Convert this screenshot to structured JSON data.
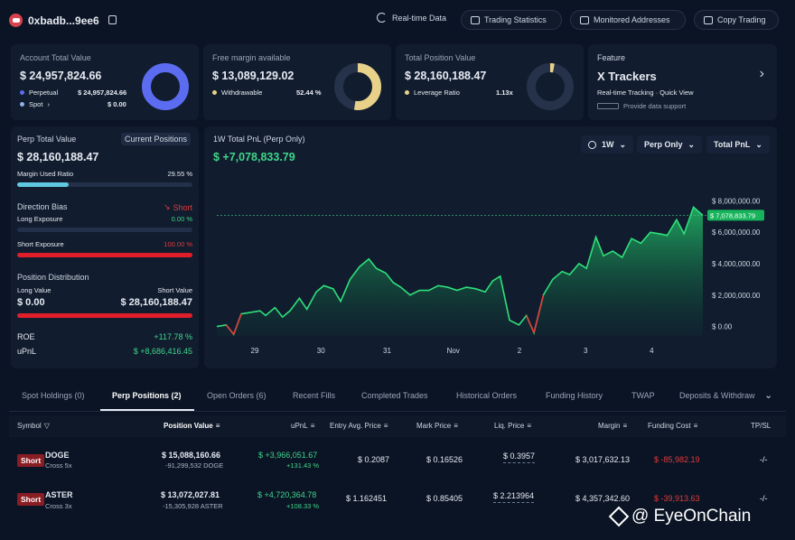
{
  "header": {
    "address": "0xbadb...9ee6",
    "buttons": [
      "Real-time Data",
      "Trading Statistics",
      "Monitored Addresses",
      "Copy Trading"
    ]
  },
  "cards": {
    "account": {
      "title": "Account Total Value",
      "value": "$ 24,957,824.66",
      "perpetual_label": "Perpetual",
      "perpetual_value": "$ 24,957,824.66",
      "spot_label": "Spot",
      "spot_value": "$ 0.00",
      "ring_fraction": 1.0
    },
    "margin": {
      "title": "Free margin available",
      "value": "$ 13,089,129.02",
      "withdrawable_label": "Withdrawable",
      "withdrawable_value": "52.44 %",
      "ring_fraction": 0.5244
    },
    "position": {
      "title": "Total Position Value",
      "value": "$ 28,160,188.47",
      "leverage_label": "Leverage Ratio",
      "leverage_value": "1.13x",
      "ring_fraction": 0.03
    },
    "feature": {
      "title": "Feature",
      "name": "X Trackers",
      "desc": "Real-time Tracking · Quick View",
      "support": "Provide data support"
    }
  },
  "perp_panel": {
    "title": "Perp Total Value",
    "tag": "Current Positions",
    "value": "$ 28,160,188.47",
    "margin_used_label": "Margin Used Ratio",
    "margin_used_value": "29.55 %",
    "margin_used_fraction": 0.2955,
    "direction_label": "Direction Bias",
    "direction_value": "Short",
    "long_exposure_label": "Long Exposure",
    "long_exposure_value": "0.00 %",
    "short_exposure_label": "Short Exposure",
    "short_exposure_value": "100.00 %",
    "distribution_label": "Position Distribution",
    "long_value_label": "Long Value",
    "short_value_label": "Short Value",
    "long_value": "$ 0.00",
    "short_value": "$ 28,160,188.47",
    "roe_label": "ROE",
    "roe_value": "+117.78 %",
    "upnl_label": "uPnL",
    "upnl_value": "$ +8,686,416.45"
  },
  "pnl_chart_panel": {
    "title": "1W Total PnL (Perp Only)",
    "value": "$ +7,078,833.79",
    "period": "1W",
    "filter": "Perp Only",
    "metric": "Total PnL"
  },
  "chart_data": {
    "type": "area",
    "title": "1W Total PnL (Perp Only)",
    "x_ticks": [
      "29",
      "30",
      "31",
      "Nov",
      "2",
      "3",
      "4"
    ],
    "y_ticks": [
      "$ 8,000,000.00",
      "$ 6,000,000.00",
      "$ 4,000,000.00",
      "$ 2,000,000.00",
      "$ 0.00"
    ],
    "ylim": [
      -600000,
      9000000
    ],
    "current_label": "$ 7,078,833.79",
    "current_value": 7078833.79,
    "points": [
      [
        0.0,
        0
      ],
      [
        0.5,
        100000
      ],
      [
        0.9,
        -500000
      ],
      [
        1.3,
        800000
      ],
      [
        1.8,
        900000
      ],
      [
        2.3,
        1000000
      ],
      [
        2.6,
        700000
      ],
      [
        3.1,
        1200000
      ],
      [
        3.5,
        600000
      ],
      [
        3.9,
        1000000
      ],
      [
        4.4,
        1800000
      ],
      [
        4.8,
        1100000
      ],
      [
        5.3,
        2200000
      ],
      [
        5.7,
        2600000
      ],
      [
        6.2,
        2400000
      ],
      [
        6.6,
        1600000
      ],
      [
        7.1,
        3000000
      ],
      [
        7.6,
        3800000
      ],
      [
        8.1,
        4300000
      ],
      [
        8.5,
        3700000
      ],
      [
        9.0,
        3400000
      ],
      [
        9.4,
        2800000
      ],
      [
        9.8,
        2500000
      ],
      [
        10.3,
        2000000
      ],
      [
        10.8,
        2300000
      ],
      [
        11.3,
        2300000
      ],
      [
        11.8,
        2600000
      ],
      [
        12.3,
        2500000
      ],
      [
        12.8,
        2300000
      ],
      [
        13.3,
        2500000
      ],
      [
        13.8,
        2400000
      ],
      [
        14.3,
        2200000
      ],
      [
        14.7,
        2900000
      ],
      [
        15.1,
        3200000
      ],
      [
        15.6,
        400000
      ],
      [
        16.1,
        100000
      ],
      [
        16.5,
        700000
      ],
      [
        16.9,
        -400000
      ],
      [
        17.4,
        2000000
      ],
      [
        17.9,
        3000000
      ],
      [
        18.4,
        3500000
      ],
      [
        18.8,
        3300000
      ],
      [
        19.3,
        4000000
      ],
      [
        19.7,
        3700000
      ],
      [
        20.2,
        5700000
      ],
      [
        20.6,
        4500000
      ],
      [
        21.1,
        4800000
      ],
      [
        21.6,
        4400000
      ],
      [
        22.1,
        5600000
      ],
      [
        22.6,
        5300000
      ],
      [
        23.1,
        6000000
      ],
      [
        23.6,
        5900000
      ],
      [
        24.0,
        5800000
      ],
      [
        24.5,
        6800000
      ],
      [
        24.9,
        5900000
      ],
      [
        25.4,
        7600000
      ],
      [
        25.9,
        7078833.79
      ]
    ]
  },
  "tabs": [
    "Spot Holdings (0)",
    "Perp Positions (2)",
    "Open Orders (6)",
    "Recent Fills",
    "Completed Trades",
    "Historical Orders",
    "Funding History",
    "TWAP",
    "Deposits & Withdraw"
  ],
  "table": {
    "headers": [
      "Symbol",
      "Position Value",
      "uPnL",
      "Entry Avg. Price",
      "Mark Price",
      "Liq. Price",
      "Margin",
      "Funding Cost",
      "TP/SL"
    ],
    "rows": [
      {
        "side": "Short",
        "symbol": "DOGE",
        "leverage": "Cross 5x",
        "value": "$ 15,088,160.66",
        "size": "-91,299,532 DOGE",
        "upnl": "$ +3,966,051.67",
        "upnl_pct": "+131.43 %",
        "entry": "$ 0.2087",
        "mark": "$ 0.16526",
        "liq": "$ 0.3957",
        "margin": "$ 3,017,632.13",
        "funding": "$ -85,982.19",
        "tpsl": "-/-"
      },
      {
        "side": "Short",
        "symbol": "ASTER",
        "leverage": "Cross 3x",
        "value": "$ 13,072,027.81",
        "size": "-15,305,928 ASTER",
        "upnl": "$ +4,720,364.78",
        "upnl_pct": "+108.33 %",
        "entry": "$ 1.162451",
        "mark": "$ 0.85405",
        "liq": "$ 2.213964",
        "margin": "$ 4,357,342.60",
        "funding": "$ -39,913.63",
        "tpsl": "-/-"
      }
    ]
  },
  "watermark": "@ EyeOnChain",
  "colors": {
    "background": "#0b1424",
    "card": "#111c2e",
    "accent_blue": "#5b6cf0",
    "accent_yellow": "#e8d28a",
    "green": "#3fd68b",
    "red": "#e23b3b",
    "short_tag": "#8a1d24"
  }
}
